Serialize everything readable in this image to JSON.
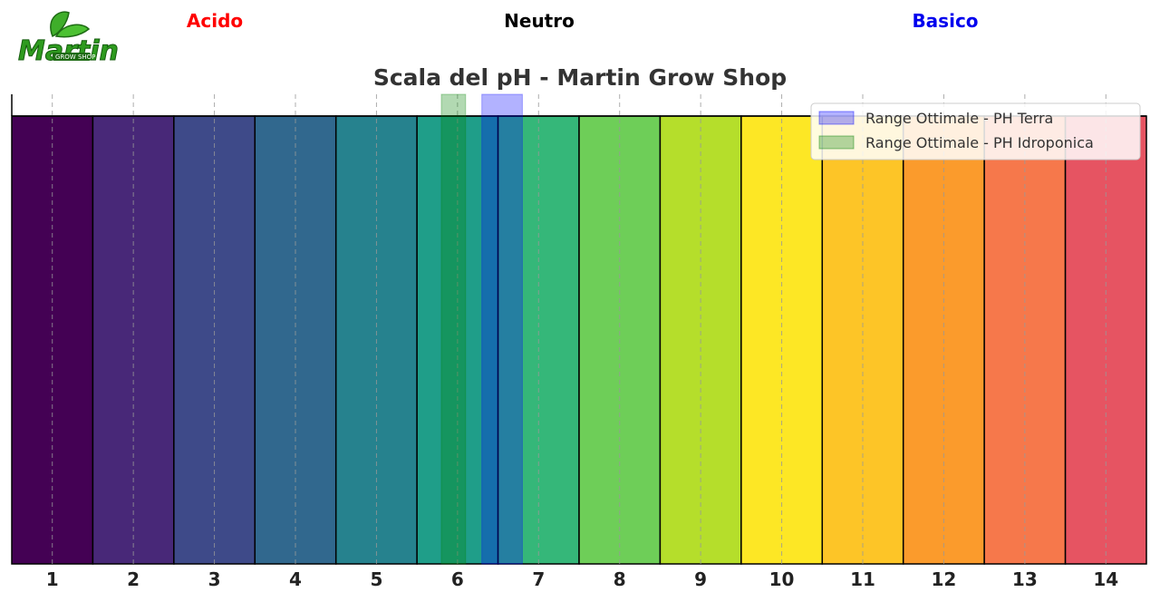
{
  "zones": {
    "acid_label": "Acido",
    "acid_color": "#ff0000",
    "neutral_label": "Neutro",
    "neutral_color": "#000000",
    "basic_label": "Basico",
    "basic_color": "#0000ee"
  },
  "logo": {
    "icon": "martin-grow-shop-logo",
    "word": "Martin",
    "sub": "GROW SHOP"
  },
  "chart_data": {
    "type": "bar",
    "title": "Scala del pH - Martin Grow Shop",
    "xlabel": "",
    "ylabel": "",
    "categories": [
      "1",
      "2",
      "3",
      "4",
      "5",
      "6",
      "7",
      "8",
      "9",
      "10",
      "11",
      "12",
      "13",
      "14"
    ],
    "values": [
      1,
      1,
      1,
      1,
      1,
      1,
      1,
      1,
      1,
      1,
      1,
      1,
      1,
      1
    ],
    "bar_colors": [
      "#440154",
      "#482878",
      "#3e4a89",
      "#31688e",
      "#26828e",
      "#1f9e89",
      "#35b779",
      "#6ece58",
      "#b5de2b",
      "#fde725",
      "#fdc527",
      "#fb9b2c",
      "#f6784b",
      "#e65462"
    ],
    "xlim": [
      0.5,
      14.5
    ],
    "grid": "vertical dashed",
    "legend_position": "top-right",
    "ranges": [
      {
        "name": "Range Ottimale - PH Terra",
        "from": 6.3,
        "to": 6.8,
        "color": "#0000ff"
      },
      {
        "name": "Range Ottimale - PH Idroponica",
        "from": 5.8,
        "to": 6.1,
        "color": "#008000"
      }
    ]
  }
}
